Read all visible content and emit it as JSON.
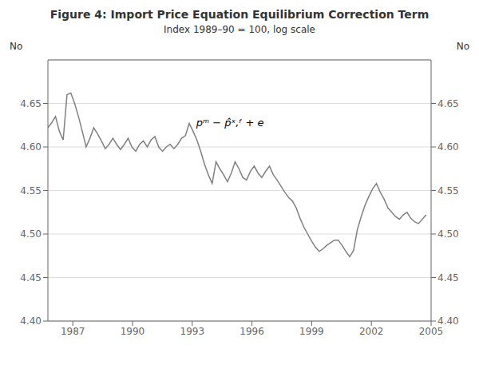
{
  "chart_data": {
    "type": "line",
    "title": "Figure 4: Import Price Equation Equilibrium Correction Term",
    "subtitle": "Index 1989–90 = 100, log scale",
    "ylabel": "No",
    "y2label": "No",
    "color": "#808080",
    "grid": "y",
    "xlim": [
      1985.75,
      2005.0
    ],
    "xticks": [
      1987,
      1990,
      1993,
      1996,
      1999,
      2002,
      2005
    ],
    "ylim": [
      4.4,
      4.7
    ],
    "yticks": [
      {
        "value": 4.4,
        "label": "4.40"
      },
      4.45,
      {
        "value": 4.5,
        "label": "4.50"
      },
      4.55,
      {
        "value": 4.6,
        "label": "4.60"
      },
      4.65
    ],
    "y2lim": [
      4.4,
      4.7
    ],
    "y2ticks": [
      {
        "value": 4.4,
        "label": "4.40"
      },
      4.45,
      {
        "value": 4.5,
        "label": "4.50"
      },
      4.55,
      {
        "value": 4.6,
        "label": "4.60"
      },
      4.65
    ],
    "annotations": [
      {
        "text": "pᵐ − p̂ˣ,ᶠ + e",
        "x": 1993.2,
        "y": 4.622
      }
    ],
    "x": [
      1985.75,
      1985.9419,
      1986.1338,
      1986.3258,
      1986.5177,
      1986.7096,
      1986.9015,
      1987.0934,
      1987.2854,
      1987.4773,
      1987.6692,
      1987.8611,
      1988.053,
      1988.2449,
      1988.4369,
      1988.6288,
      1988.8207,
      1989.0126,
      1989.2045,
      1989.3965,
      1989.5884,
      1989.7803,
      1989.9722,
      1990.1641,
      1990.3561,
      1990.548,
      1990.7399,
      1990.9318,
      1991.1237,
      1991.3157,
      1991.5076,
      1991.6995,
      1991.8914,
      1992.0833,
      1992.2753,
      1992.4672,
      1992.6591,
      1992.851,
      1993.0429,
      1993.2348,
      1993.4268,
      1993.6187,
      1993.8106,
      1994.0025,
      1994.1944,
      1994.3864,
      1994.5783,
      1994.7702,
      1994.9621,
      1995.154,
      1995.346,
      1995.5379,
      1995.7298,
      1995.9217,
      1996.1136,
      1996.3056,
      1996.4975,
      1996.6894,
      1996.8813,
      1997.0732,
      1997.2652,
      1997.4571,
      1997.649,
      1997.8409,
      1998.0328,
      1998.2247,
      1998.4167,
      1998.6086,
      1998.8005,
      1998.9924,
      1999.1843,
      1999.3763,
      1999.5682,
      1999.7601,
      1999.952,
      2000.1439,
      2000.3359,
      2000.5278,
      2000.7197,
      2000.9116,
      2001.1035,
      2001.2955,
      2001.4874,
      2001.6793,
      2001.8712,
      2002.0631,
      2002.2551,
      2002.447,
      2002.6389,
      2002.8308,
      2003.0227,
      2003.2146,
      2003.4066,
      2003.5985,
      2003.7904,
      2003.9823,
      2004.1742,
      2004.3662,
      2004.5581,
      2004.75
    ],
    "values": [
      4.622,
      4.628,
      4.635,
      4.618,
      4.608,
      4.66,
      4.662,
      4.65,
      4.635,
      4.618,
      4.6,
      4.61,
      4.622,
      4.615,
      4.607,
      4.598,
      4.603,
      4.61,
      4.603,
      4.597,
      4.603,
      4.61,
      4.6,
      4.595,
      4.603,
      4.607,
      4.6,
      4.608,
      4.612,
      4.6,
      4.595,
      4.6,
      4.603,
      4.598,
      4.603,
      4.61,
      4.613,
      4.627,
      4.618,
      4.608,
      4.595,
      4.58,
      4.568,
      4.558,
      4.583,
      4.575,
      4.568,
      4.56,
      4.57,
      4.583,
      4.575,
      4.565,
      4.562,
      4.572,
      4.578,
      4.57,
      4.565,
      4.572,
      4.578,
      4.568,
      4.562,
      4.555,
      4.548,
      4.542,
      4.538,
      4.53,
      4.518,
      4.508,
      4.5,
      4.492,
      4.485,
      4.48,
      4.483,
      4.487,
      4.49,
      4.493,
      4.493,
      4.487,
      4.48,
      4.474,
      4.481,
      4.505,
      4.52,
      4.533,
      4.543,
      4.552,
      4.558,
      4.548,
      4.54,
      4.53,
      4.525,
      4.52,
      4.517,
      4.522,
      4.525,
      4.518,
      4.514,
      4.512,
      4.517,
      4.522
    ]
  }
}
